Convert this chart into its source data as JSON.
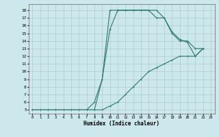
{
  "xlabel": "Humidex (Indice chaleur)",
  "bg_color": "#cce8ec",
  "grid_color": "#aacccc",
  "line_color": "#2a7a6a",
  "xlim": [
    -0.5,
    23.5
  ],
  "ylim": [
    4.5,
    18.8
  ],
  "xticks": [
    0,
    1,
    2,
    3,
    4,
    5,
    6,
    7,
    8,
    9,
    10,
    11,
    12,
    13,
    14,
    15,
    16,
    17,
    18,
    19,
    20,
    21,
    22,
    23
  ],
  "yticks": [
    5,
    6,
    7,
    8,
    9,
    10,
    11,
    12,
    13,
    14,
    15,
    16,
    17,
    18
  ],
  "curve1_x": [
    0,
    1,
    2,
    3,
    4,
    5,
    6,
    7,
    8,
    9,
    10,
    11,
    12,
    13,
    14,
    15,
    16,
    17,
    18,
    19,
    20,
    21,
    22
  ],
  "curve1_y": [
    5,
    5,
    5,
    5,
    5,
    5,
    5,
    5,
    5,
    9,
    15.5,
    18,
    18,
    18,
    18,
    18,
    18,
    17,
    15,
    14,
    14,
    13,
    13
  ],
  "curve2_x": [
    0,
    1,
    2,
    3,
    4,
    5,
    6,
    7,
    8,
    9,
    10,
    11,
    12,
    13,
    14,
    15,
    16,
    17,
    18,
    19,
    20,
    21,
    22
  ],
  "curve2_y": [
    5,
    5,
    5,
    5,
    5,
    5,
    5,
    5,
    6,
    9,
    18,
    18,
    18,
    18,
    18,
    18,
    17,
    17,
    15.2,
    14.2,
    13.8,
    12,
    13
  ],
  "curve3_x": [
    0,
    1,
    2,
    3,
    4,
    5,
    6,
    7,
    8,
    9,
    10,
    11,
    12,
    13,
    14,
    15,
    16,
    17,
    18,
    19,
    20,
    21,
    22
  ],
  "curve3_y": [
    5,
    5,
    5,
    5,
    5,
    5,
    5,
    5,
    5,
    5,
    5.5,
    6,
    7,
    8,
    9,
    10,
    10.5,
    11,
    11.5,
    12,
    12,
    12,
    13
  ]
}
